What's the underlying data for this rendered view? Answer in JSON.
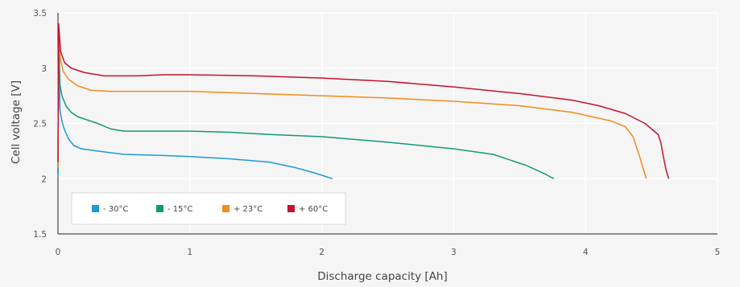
{
  "chart_data": {
    "type": "line",
    "title": "",
    "xlabel": "Discharge capacity [Ah]",
    "ylabel": "Cell voltage [V]",
    "xlim": [
      0,
      5
    ],
    "ylim": [
      1.5,
      3.5
    ],
    "xticks": [
      0,
      1,
      2,
      3,
      4,
      5
    ],
    "yticks": [
      1.5,
      2,
      2.5,
      3,
      3.5
    ],
    "xtick_labels": [
      "0",
      "1",
      "2",
      "3",
      "4",
      "5"
    ],
    "ytick_labels": [
      "1.5",
      "2",
      "2.5",
      "3",
      "3.5"
    ],
    "grid": true,
    "legend_position": "bottom-left",
    "series": [
      {
        "name": "- 30°C",
        "color": "#1b9ad6",
        "points": [
          [
            0,
            2.02
          ],
          [
            0.005,
            3.3
          ],
          [
            0.015,
            2.62
          ],
          [
            0.03,
            2.52
          ],
          [
            0.05,
            2.44
          ],
          [
            0.08,
            2.36
          ],
          [
            0.12,
            2.3
          ],
          [
            0.18,
            2.27
          ],
          [
            0.3,
            2.25
          ],
          [
            0.5,
            2.22
          ],
          [
            0.8,
            2.21
          ],
          [
            1.0,
            2.2
          ],
          [
            1.3,
            2.18
          ],
          [
            1.6,
            2.15
          ],
          [
            1.8,
            2.1
          ],
          [
            1.95,
            2.05
          ],
          [
            2.08,
            2.0
          ]
        ]
      },
      {
        "name": "- 15°C",
        "color": "#119a7a",
        "points": [
          [
            0,
            2.05
          ],
          [
            0.005,
            3.35
          ],
          [
            0.015,
            2.85
          ],
          [
            0.03,
            2.75
          ],
          [
            0.06,
            2.66
          ],
          [
            0.1,
            2.6
          ],
          [
            0.15,
            2.56
          ],
          [
            0.2,
            2.54
          ],
          [
            0.3,
            2.5
          ],
          [
            0.4,
            2.45
          ],
          [
            0.5,
            2.43
          ],
          [
            0.8,
            2.43
          ],
          [
            1.0,
            2.43
          ],
          [
            1.3,
            2.42
          ],
          [
            1.6,
            2.4
          ],
          [
            2.0,
            2.38
          ],
          [
            2.5,
            2.33
          ],
          [
            3.0,
            2.27
          ],
          [
            3.3,
            2.22
          ],
          [
            3.55,
            2.12
          ],
          [
            3.68,
            2.05
          ],
          [
            3.76,
            2.0
          ]
        ]
      },
      {
        "name": "+ 23°C",
        "color": "#f28c1c",
        "points": [
          [
            0,
            2.1
          ],
          [
            0.005,
            3.38
          ],
          [
            0.015,
            3.1
          ],
          [
            0.04,
            2.97
          ],
          [
            0.08,
            2.9
          ],
          [
            0.15,
            2.84
          ],
          [
            0.25,
            2.8
          ],
          [
            0.4,
            2.79
          ],
          [
            0.8,
            2.79
          ],
          [
            1.0,
            2.79
          ],
          [
            1.5,
            2.77
          ],
          [
            2.0,
            2.75
          ],
          [
            2.5,
            2.73
          ],
          [
            3.0,
            2.7
          ],
          [
            3.5,
            2.66
          ],
          [
            3.9,
            2.6
          ],
          [
            4.2,
            2.52
          ],
          [
            4.3,
            2.47
          ],
          [
            4.36,
            2.38
          ],
          [
            4.41,
            2.2
          ],
          [
            4.44,
            2.08
          ],
          [
            4.46,
            2.0
          ]
        ]
      },
      {
        "name": "+ 60°C",
        "color": "#c41230",
        "points": [
          [
            0,
            2.15
          ],
          [
            0.005,
            3.4
          ],
          [
            0.02,
            3.15
          ],
          [
            0.05,
            3.05
          ],
          [
            0.1,
            3.0
          ],
          [
            0.2,
            2.96
          ],
          [
            0.35,
            2.93
          ],
          [
            0.6,
            2.93
          ],
          [
            0.8,
            2.94
          ],
          [
            1.0,
            2.94
          ],
          [
            1.5,
            2.93
          ],
          [
            2.0,
            2.91
          ],
          [
            2.5,
            2.88
          ],
          [
            3.0,
            2.83
          ],
          [
            3.5,
            2.77
          ],
          [
            3.9,
            2.71
          ],
          [
            4.1,
            2.66
          ],
          [
            4.3,
            2.59
          ],
          [
            4.45,
            2.5
          ],
          [
            4.55,
            2.4
          ],
          [
            4.57,
            2.33
          ],
          [
            4.59,
            2.2
          ],
          [
            4.61,
            2.08
          ],
          [
            4.63,
            2.0
          ]
        ]
      }
    ]
  }
}
